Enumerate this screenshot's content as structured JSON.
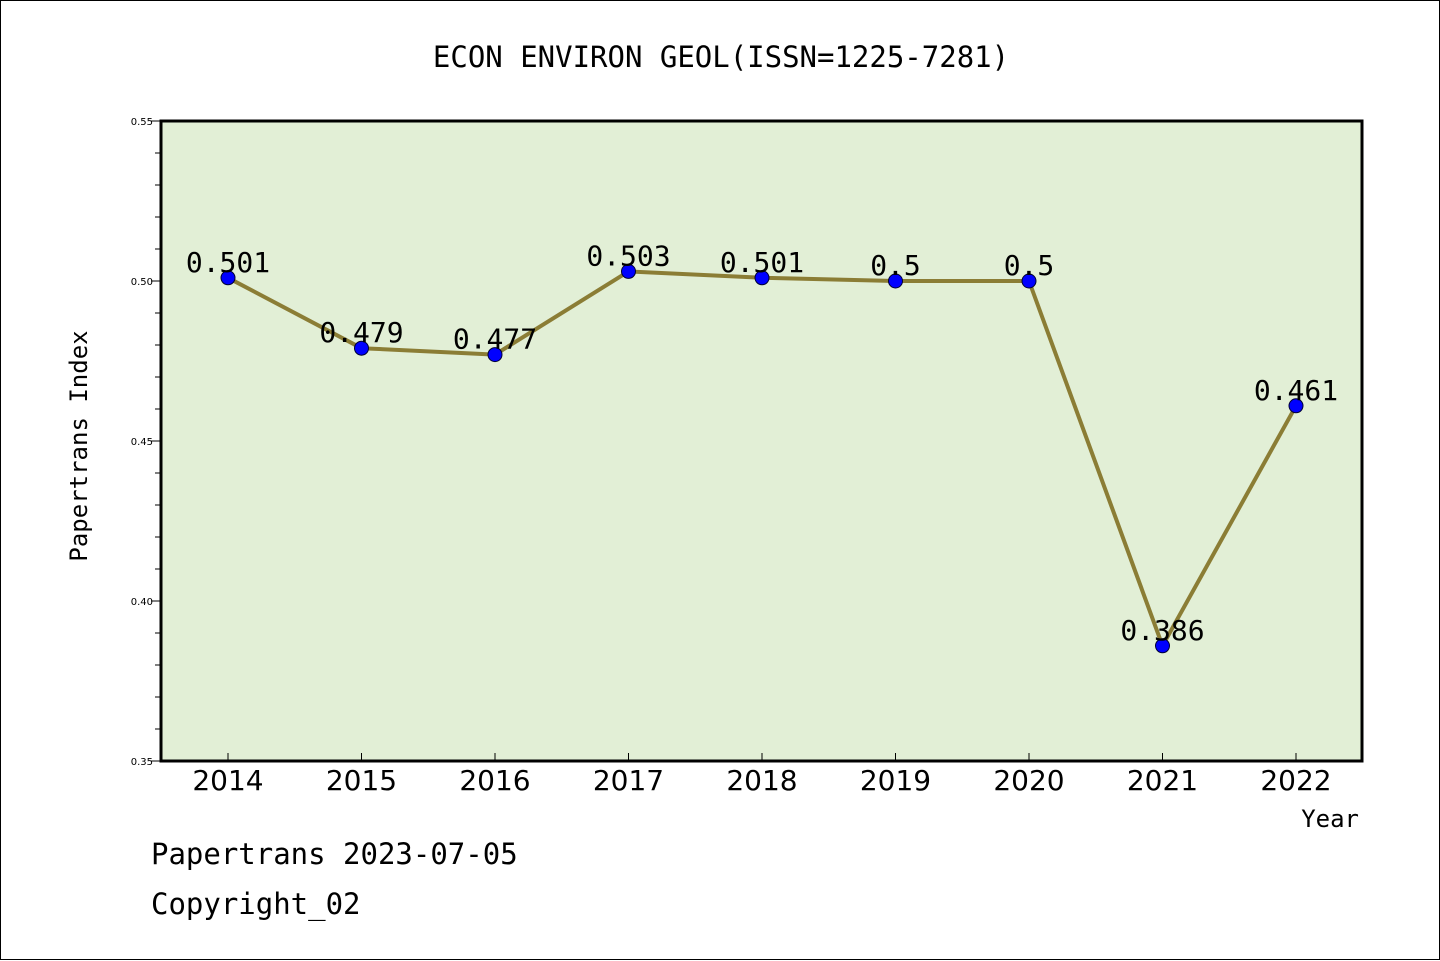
{
  "chart_data": {
    "type": "line",
    "title": "ECON ENVIRON GEOL(ISSN=1225-7281)",
    "xlabel": "Year",
    "ylabel": "Papertrans Index",
    "categories": [
      "2014",
      "2015",
      "2016",
      "2017",
      "2018",
      "2019",
      "2020",
      "2021",
      "2022"
    ],
    "values": [
      0.501,
      0.479,
      0.477,
      0.503,
      0.501,
      0.5,
      0.5,
      0.386,
      0.461
    ],
    "data_labels": [
      "0.501",
      "0.479",
      "0.477",
      "0.503",
      "0.501",
      "0.5",
      "0.5",
      "0.386",
      "0.461"
    ],
    "ylim": [
      0.35,
      0.55
    ],
    "yticks": [
      0.35,
      0.4,
      0.45,
      0.5,
      0.55
    ],
    "ytick_labels": [
      "0.35",
      "0.40",
      "0.45",
      "0.50",
      "0.55"
    ],
    "grid": false,
    "colors": {
      "plot_background": "#e2efd6",
      "line": "#8b7d35",
      "marker": "#0000ff"
    }
  },
  "footer": {
    "line1": "Papertrans 2023-07-05",
    "line2": "Copyright_02"
  }
}
